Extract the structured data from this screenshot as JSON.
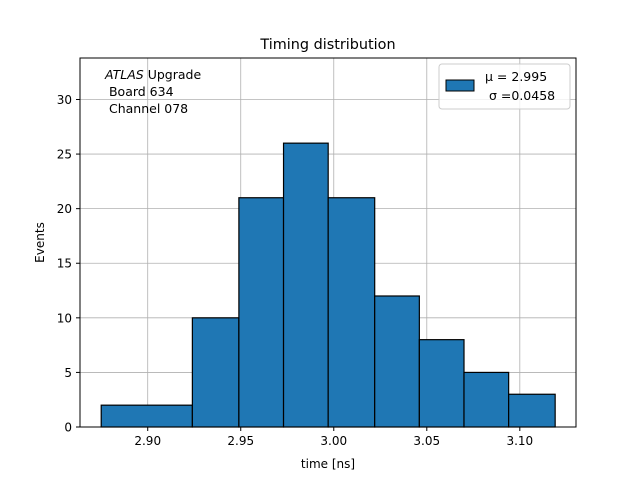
{
  "chart_data": {
    "type": "bar",
    "title": "Timing distribution",
    "xlabel": "time [ns]",
    "ylabel": "Events",
    "xlim": [
      2.8636,
      3.1302
    ],
    "ylim": [
      0,
      33.8
    ],
    "grid": true,
    "bar_color": "#1f77b4",
    "edge_color": "#000000",
    "bins": [
      {
        "x0": 2.875,
        "x1": 2.924,
        "count": 2
      },
      {
        "x0": 2.924,
        "x1": 2.949,
        "count": 10
      },
      {
        "x0": 2.949,
        "x1": 2.973,
        "count": 21
      },
      {
        "x0": 2.973,
        "x1": 2.997,
        "count": 26
      },
      {
        "x0": 2.997,
        "x1": 3.022,
        "count": 21
      },
      {
        "x0": 3.022,
        "x1": 3.046,
        "count": 12
      },
      {
        "x0": 3.046,
        "x1": 3.07,
        "count": 8
      },
      {
        "x0": 3.07,
        "x1": 3.094,
        "count": 5
      },
      {
        "x0": 3.094,
        "x1": 3.119,
        "count": 3
      }
    ],
    "x_ticks": [
      {
        "value": 2.9,
        "label": "2.90"
      },
      {
        "value": 2.95,
        "label": "2.95"
      },
      {
        "value": 3.0,
        "label": "3.00"
      },
      {
        "value": 3.05,
        "label": "3.05"
      },
      {
        "value": 3.1,
        "label": "3.10"
      }
    ],
    "y_ticks": [
      {
        "value": 0,
        "label": "0"
      },
      {
        "value": 5,
        "label": "5"
      },
      {
        "value": 10,
        "label": "10"
      },
      {
        "value": 15,
        "label": "15"
      },
      {
        "value": 20,
        "label": "20"
      },
      {
        "value": 25,
        "label": "25"
      },
      {
        "value": 30,
        "label": "30"
      }
    ],
    "annotation": {
      "italic": "ATLAS",
      "rest": " Upgrade",
      "line2": " Board 634",
      "line3": " Channel 078"
    },
    "legend": {
      "placement": "top-right",
      "mu_label": "μ = 2.995",
      "sigma_label": "σ =0.0458"
    }
  }
}
